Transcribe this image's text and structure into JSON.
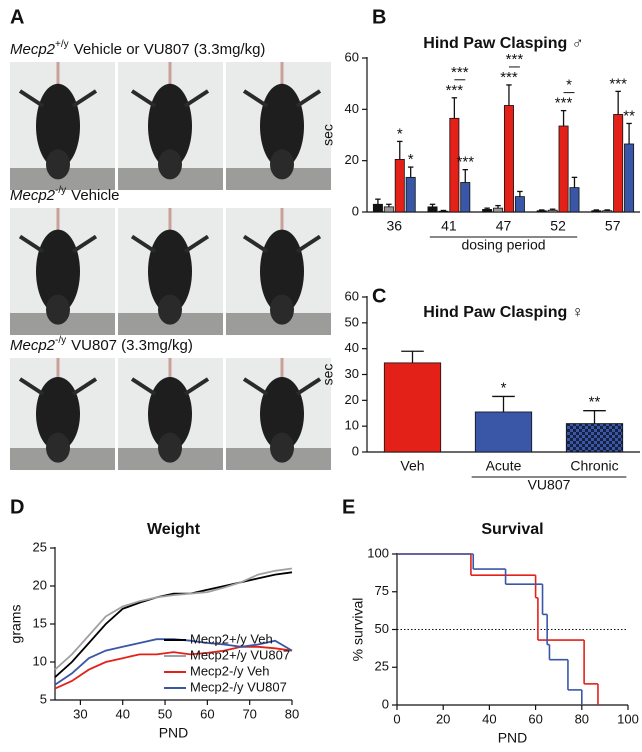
{
  "photo_panel": {
    "panel": "A",
    "rows": [
      {
        "gene": "Mecp2",
        "genotype": "+/y",
        "treatment": "Vehicle or VU807 (3.3mg/kg)"
      },
      {
        "gene": "Mecp2",
        "genotype": "-/y",
        "treatment": "Vehicle"
      },
      {
        "gene": "Mecp2",
        "genotype": "-/y",
        "treatment": "VU807 (3.3mg/kg)"
      }
    ]
  },
  "chart_data": [
    {
      "panel": "B",
      "type": "bar",
      "title": "Hind Paw Clasping ♂",
      "y_label": "sec",
      "categories": [
        "36",
        "41",
        "47",
        "52",
        "57"
      ],
      "x_group_label": "dosing period",
      "x_group_range": [
        "41",
        "52"
      ],
      "ylim": [
        0,
        60
      ],
      "yticks": [
        0,
        20,
        40,
        60
      ],
      "series": [
        {
          "color": "#111111",
          "values": [
            3,
            2,
            1,
            0.5,
            0.5
          ],
          "errors": [
            2,
            1,
            0.5,
            0.3,
            0.3
          ],
          "significance": [
            null,
            null,
            null,
            null,
            null
          ]
        },
        {
          "color": "#9a9a9a",
          "values": [
            2,
            0.3,
            1.5,
            0.7,
            0.5
          ],
          "errors": [
            1,
            0.3,
            1,
            0.4,
            0.3
          ],
          "significance": [
            null,
            null,
            null,
            null,
            null
          ]
        },
        {
          "color": "#e32119",
          "values": [
            20.5,
            36.5,
            41.5,
            33.5,
            38
          ],
          "errors": [
            7,
            8,
            8,
            6,
            9
          ],
          "significance": [
            "*",
            "***",
            "***",
            "***",
            "***"
          ]
        },
        {
          "color": "#3a56a6",
          "values": [
            13.5,
            11.5,
            6,
            9.5,
            26.5
          ],
          "errors": [
            4,
            5,
            2,
            4,
            8
          ],
          "significance": [
            "*",
            "***",
            null,
            null,
            "**"
          ]
        }
      ],
      "bracket_significance": [
        null,
        "***",
        "***",
        "*",
        null
      ]
    },
    {
      "panel": "C",
      "type": "bar",
      "title": "Hind Paw Clasping ♀",
      "y_label": "sec",
      "categories": [
        "Veh",
        "Acute",
        "Chronic"
      ],
      "x_group_label": "VU807",
      "x_group_range": [
        "Acute",
        "Chronic"
      ],
      "ylim": [
        0,
        60
      ],
      "yticks": [
        0,
        10,
        20,
        30,
        40,
        50,
        60
      ],
      "values": [
        34.5,
        15.5,
        11
      ],
      "errors": [
        4.5,
        6,
        5
      ],
      "significance": [
        null,
        "*",
        "**"
      ],
      "colors": [
        "#e32119",
        "#3a56a6",
        "#3a56a6"
      ],
      "patterns": [
        null,
        null,
        "checker"
      ]
    },
    {
      "panel": "D",
      "type": "line",
      "title": "Weight",
      "x_label": "PND",
      "y_label": "grams",
      "x": [
        24,
        28,
        32,
        36,
        40,
        44,
        48,
        52,
        56,
        60,
        64,
        68,
        72,
        76,
        80
      ],
      "xlim": [
        24,
        80
      ],
      "xticks": [
        30,
        40,
        50,
        60,
        70,
        80
      ],
      "ylim": [
        5,
        25
      ],
      "yticks": [
        5,
        10,
        15,
        20,
        25
      ],
      "legend": "lower right",
      "series": [
        {
          "name": "Mecp2+/y Veh",
          "color": "#000000",
          "values": [
            8,
            10,
            12.5,
            15,
            17,
            17.8,
            18.5,
            19,
            19,
            19.5,
            20,
            20.5,
            21,
            21.5,
            21.8
          ]
        },
        {
          "name": "Mecp2+/y VU807",
          "color": "#a0a0a0",
          "values": [
            9,
            11,
            13.5,
            16,
            17.3,
            18,
            18.5,
            18.8,
            19,
            19.2,
            19.8,
            20.5,
            21.5,
            22,
            22.3
          ]
        },
        {
          "name": "Mecp2-/y Veh",
          "color": "#e32119",
          "values": [
            6.5,
            7.5,
            9,
            10,
            10.5,
            11,
            11,
            11.3,
            11,
            11.2,
            11.5,
            12,
            12,
            11.8,
            11.5
          ]
        },
        {
          "name": "Mecp2-/y VU807",
          "color": "#3a56a6",
          "values": [
            7,
            8.5,
            10.5,
            11.5,
            12,
            12.5,
            13,
            13,
            12.8,
            12.5,
            12.3,
            12,
            12.3,
            12.8,
            11.5
          ]
        }
      ]
    },
    {
      "panel": "E",
      "type": "step",
      "title": "Survival",
      "x_label": "PND",
      "y_label": "% survival",
      "xlim": [
        0,
        100
      ],
      "xticks": [
        0,
        20,
        40,
        60,
        80,
        100
      ],
      "ylim": [
        0,
        100
      ],
      "yticks": [
        0,
        25,
        50,
        75,
        100
      ],
      "reference_line": 50,
      "series": [
        {
          "color": "#e32119",
          "x": [
            0,
            32,
            60,
            61,
            81,
            87
          ],
          "values": [
            100,
            86,
            71,
            43,
            14,
            0
          ]
        },
        {
          "color": "#3a56a6",
          "x": [
            0,
            33,
            47,
            63,
            65,
            66,
            74,
            80
          ],
          "values": [
            100,
            90,
            80,
            60,
            40,
            30,
            10,
            0
          ]
        }
      ]
    }
  ]
}
